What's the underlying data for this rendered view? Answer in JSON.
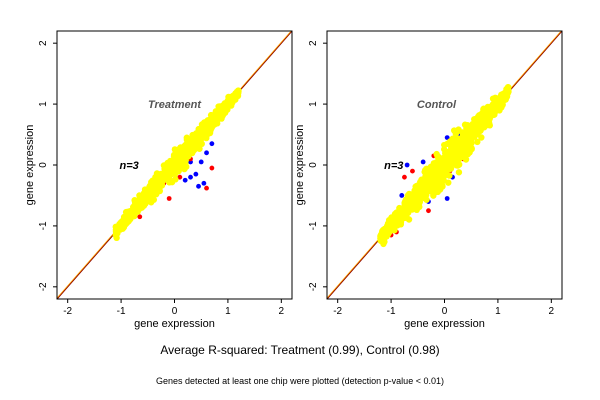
{
  "figure": {
    "caption": "Average R-squared: Treatment (0.99), Control (0.98)",
    "footnote": "Genes detected at least one chip were plotted (detection p-value < 0.01)"
  },
  "chart_data": [
    {
      "type": "scatter",
      "panel_label": "Treatment",
      "annotation": "n=3",
      "xlabel": "gene expression",
      "ylabel": "gene expression",
      "xlim": [
        -2.2,
        2.2
      ],
      "ylim": [
        -2.2,
        2.2
      ],
      "xticks": [
        -2,
        -1,
        0,
        1,
        2
      ],
      "yticks": [
        -2,
        -1,
        0,
        1,
        2
      ],
      "reference_line": {
        "slope": 1,
        "intercept": 0
      },
      "cloud": {
        "x_range": [
          -1.1,
          1.2
        ],
        "spread": 0.1
      },
      "series": [
        {
          "color": "#0000ff",
          "points": [
            [
              0.45,
              -0.35
            ],
            [
              0.55,
              -0.3
            ],
            [
              0.3,
              -0.2
            ],
            [
              0.5,
              0.05
            ],
            [
              0.6,
              0.2
            ],
            [
              0.7,
              0.35
            ],
            [
              0.2,
              -0.25
            ],
            [
              0.4,
              -0.15
            ],
            [
              0.52,
              0.62
            ],
            [
              0.3,
              0.05
            ]
          ]
        },
        {
          "color": "#ff0000",
          "points": [
            [
              0.6,
              -0.38
            ],
            [
              0.7,
              -0.05
            ],
            [
              -0.55,
              -0.42
            ],
            [
              -0.4,
              -0.55
            ],
            [
              -0.2,
              -0.3
            ],
            [
              0.0,
              -0.1
            ],
            [
              0.15,
              0.3
            ],
            [
              0.35,
              0.4
            ],
            [
              0.55,
              0.65
            ],
            [
              0.75,
              0.75
            ],
            [
              -0.7,
              -0.6
            ],
            [
              -0.85,
              -0.85
            ],
            [
              -0.65,
              -0.85
            ],
            [
              0.3,
              0.1
            ],
            [
              0.1,
              -0.2
            ],
            [
              -0.1,
              -0.55
            ],
            [
              0.0,
              0.05
            ],
            [
              0.9,
              0.9
            ]
          ]
        },
        {
          "color": "#ffff00",
          "points": []
        }
      ]
    },
    {
      "type": "scatter",
      "panel_label": "Control",
      "annotation": "n=3",
      "xlabel": "gene expression",
      "ylabel": "gene expression",
      "xlim": [
        -2.2,
        2.2
      ],
      "ylim": [
        -2.2,
        2.2
      ],
      "xticks": [
        -2,
        -1,
        0,
        1,
        2
      ],
      "yticks": [
        -2,
        -1,
        0,
        1,
        2
      ],
      "reference_line": {
        "slope": 1,
        "intercept": 0
      },
      "cloud": {
        "x_range": [
          -1.2,
          1.2
        ],
        "spread": 0.16
      },
      "series": [
        {
          "color": "#0000ff",
          "points": [
            [
              -0.7,
              0.0
            ],
            [
              -0.55,
              -0.45
            ],
            [
              -0.3,
              -0.6
            ],
            [
              0.05,
              -0.55
            ],
            [
              0.2,
              0.35
            ],
            [
              0.05,
              0.45
            ],
            [
              -0.8,
              -0.5
            ],
            [
              -0.9,
              -0.9
            ],
            [
              -0.4,
              0.05
            ],
            [
              0.3,
              0.5
            ],
            [
              0.6,
              0.7
            ],
            [
              -0.15,
              -0.45
            ],
            [
              0.15,
              -0.2
            ]
          ]
        },
        {
          "color": "#ff0000",
          "points": [
            [
              -0.75,
              -0.2
            ],
            [
              -0.5,
              -0.55
            ],
            [
              -0.3,
              -0.75
            ],
            [
              0.0,
              0.25
            ],
            [
              0.35,
              0.1
            ],
            [
              0.55,
              0.55
            ],
            [
              0.75,
              0.8
            ],
            [
              0.9,
              1.0
            ],
            [
              -1.05,
              -0.95
            ],
            [
              -0.9,
              -1.1
            ],
            [
              -0.6,
              -0.1
            ],
            [
              0.1,
              -0.1
            ],
            [
              0.4,
              0.6
            ],
            [
              -0.2,
              0.15
            ],
            [
              0.65,
              0.55
            ],
            [
              -1.0,
              -1.15
            ],
            [
              0.2,
              0.05
            ]
          ]
        },
        {
          "color": "#ffff00",
          "points": []
        }
      ]
    }
  ]
}
